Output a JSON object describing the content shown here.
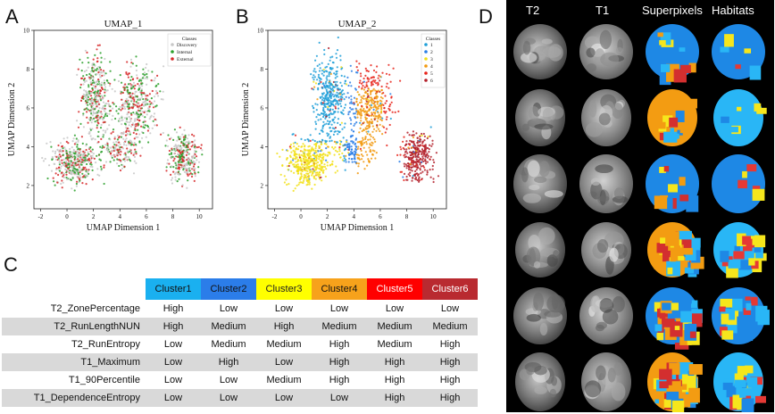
{
  "panel_labels": {
    "a": "A",
    "b": "B",
    "c": "C",
    "d": "D"
  },
  "chart_data": [
    {
      "type": "scatter",
      "title": "UMAP_1",
      "xlabel": "UMAP Dimension 1",
      "ylabel": "UMAP Dimension 2",
      "xlim": [
        -2.5,
        11
      ],
      "ylim": [
        0.8,
        10
      ],
      "xticks": [
        "-2",
        "0",
        "2",
        "4",
        "6",
        "8",
        "10"
      ],
      "yticks": [
        "2",
        "4",
        "6",
        "8",
        "10"
      ],
      "legend_title": "Classes",
      "legend_position": "top-right",
      "series": [
        {
          "name": "Discovery",
          "color": "#c8c8c8"
        },
        {
          "name": "Internal",
          "color": "#2ca02c"
        },
        {
          "name": "External",
          "color": "#d62728"
        }
      ]
    },
    {
      "type": "scatter",
      "title": "UMAP_2",
      "xlabel": "UMAP Dimension 1",
      "ylabel": "UMAP Dimension 2",
      "xlim": [
        -2.5,
        11
      ],
      "ylim": [
        0.8,
        10
      ],
      "xticks": [
        "-2",
        "0",
        "2",
        "4",
        "6",
        "8",
        "10"
      ],
      "yticks": [
        "2",
        "4",
        "6",
        "8",
        "10"
      ],
      "legend_title": "Classes",
      "legend_position": "top-right",
      "series": [
        {
          "name": "1",
          "color": "#1f9fd8"
        },
        {
          "name": "2",
          "color": "#2a7ee6"
        },
        {
          "name": "3",
          "color": "#f2e11b"
        },
        {
          "name": "4",
          "color": "#f29a10"
        },
        {
          "name": "5",
          "color": "#e8231a"
        },
        {
          "name": "6",
          "color": "#b3202a"
        }
      ]
    },
    {
      "type": "table",
      "columns": [
        "Cluster1",
        "Cluster2",
        "Cluster3",
        "Cluster4",
        "Cluster5",
        "Cluster6"
      ],
      "column_colors": [
        "#1ab0f0",
        "#2b7de9",
        "#ffff00",
        "#f7a21b",
        "#ff0000",
        "#b92a30"
      ],
      "rows": [
        {
          "feature": "T2_ZonePercentage",
          "values": [
            "High",
            "Low",
            "Low",
            "Low",
            "Low",
            "Low"
          ]
        },
        {
          "feature": "T2_RunLengthNUN",
          "values": [
            "High",
            "Medium",
            "High",
            "Medium",
            "Medium",
            "Medium"
          ]
        },
        {
          "feature": "T2_RunEntropy",
          "values": [
            "Low",
            "Medium",
            "Medium",
            "High",
            "Medium",
            "High"
          ]
        },
        {
          "feature": "T1_Maximum",
          "values": [
            "Low",
            "High",
            "Low",
            "High",
            "High",
            "High"
          ]
        },
        {
          "feature": "T1_90Percentile",
          "values": [
            "Low",
            "Low",
            "Medium",
            "High",
            "High",
            "High"
          ]
        },
        {
          "feature": "T1_DependenceEntropy",
          "values": [
            "Low",
            "Low",
            "Low",
            "Low",
            "High",
            "High"
          ]
        }
      ]
    }
  ],
  "image_grid": {
    "headers": [
      "T2",
      "T1",
      "Superpixels",
      "Habitats"
    ],
    "rows": 6
  }
}
